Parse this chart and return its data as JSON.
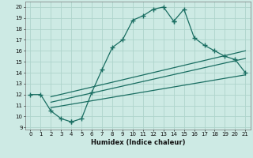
{
  "xlabel": "Humidex (Indice chaleur)",
  "xlim": [
    -0.5,
    21.5
  ],
  "ylim": [
    8.8,
    20.5
  ],
  "xticks": [
    0,
    1,
    2,
    3,
    4,
    5,
    6,
    7,
    8,
    9,
    10,
    11,
    12,
    13,
    14,
    15,
    16,
    17,
    18,
    19,
    20,
    21
  ],
  "yticks": [
    9,
    10,
    11,
    12,
    13,
    14,
    15,
    16,
    17,
    18,
    19,
    20
  ],
  "bg_color": "#cdeae4",
  "grid_color": "#aed4cc",
  "line_color": "#1a6e62",
  "curve1_x": [
    0,
    1,
    2,
    3,
    4,
    4,
    5,
    6,
    7,
    8,
    9,
    10,
    11,
    12,
    13,
    14,
    14,
    15,
    16,
    17,
    18,
    19,
    20,
    21
  ],
  "curve1_y": [
    12,
    12,
    10.5,
    9.8,
    9.5,
    9.5,
    9.8,
    12.2,
    14.3,
    16.3,
    17.0,
    18.8,
    19.2,
    19.8,
    20.0,
    18.7,
    18.7,
    19.8,
    17.2,
    16.5,
    16.0,
    15.5,
    15.2,
    14.0
  ],
  "line1_x": [
    2,
    21
  ],
  "line1_y": [
    11.8,
    16.0
  ],
  "line2_x": [
    2,
    21
  ],
  "line2_y": [
    11.3,
    15.3
  ],
  "line3_x": [
    2,
    21
  ],
  "line3_y": [
    10.8,
    13.8
  ]
}
